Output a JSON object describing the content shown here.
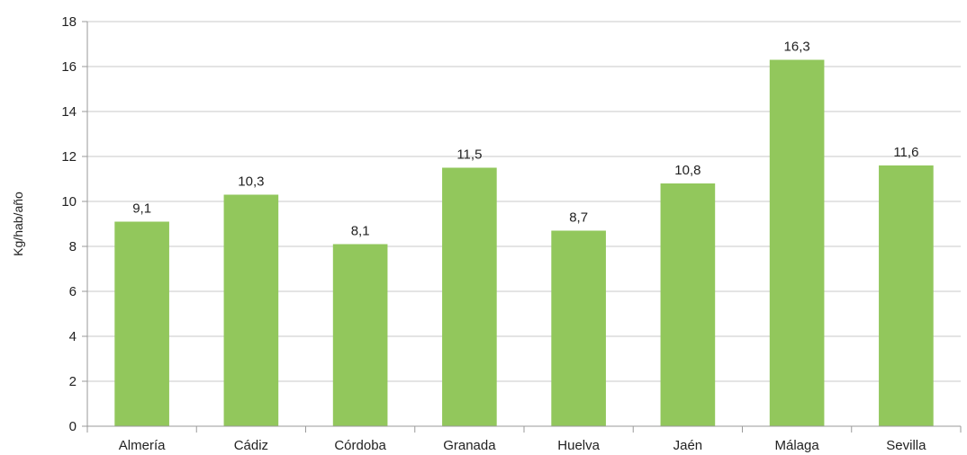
{
  "chart_data": {
    "type": "bar",
    "title": "",
    "xlabel": "",
    "ylabel": "Kg/hab/año",
    "ylim": [
      0,
      18
    ],
    "yticks": [
      0,
      2,
      4,
      6,
      8,
      10,
      12,
      14,
      16,
      18
    ],
    "grid": true,
    "legend": "none",
    "bar_color": "#92c75c",
    "categories": [
      "Almería",
      "Cádiz",
      "Córdoba",
      "Granada",
      "Huelva",
      "Jaén",
      "Málaga",
      "Sevilla"
    ],
    "values": [
      9.1,
      10.3,
      8.1,
      11.5,
      8.7,
      10.8,
      16.3,
      11.6
    ],
    "value_labels": [
      "9,1",
      "10,3",
      "8,1",
      "11,5",
      "8,7",
      "10,8",
      "16,3",
      "11,6"
    ]
  }
}
